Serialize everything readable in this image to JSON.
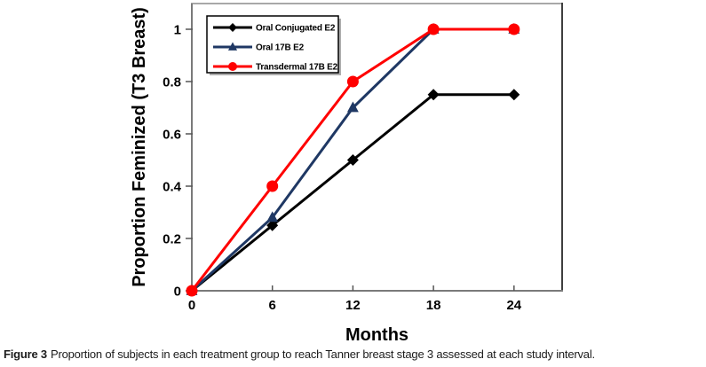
{
  "caption": {
    "label": "Figure 3",
    "text": "Proportion of subjects in each treatment group to reach Tanner breast stage 3 assessed at each study interval."
  },
  "chart_data": {
    "type": "line",
    "title": "",
    "xlabel": "Months",
    "ylabel": "Proportion Feminized (T3 Breast)",
    "x": [
      0,
      6,
      12,
      18,
      24
    ],
    "x_tick_labels": [
      "0",
      "6",
      "12",
      "18",
      "24"
    ],
    "y_ticks": [
      0,
      0.2,
      0.4,
      0.6,
      0.8,
      1
    ],
    "y_tick_labels": [
      "0",
      "0.2",
      "0.4",
      "0.6",
      "0.8",
      "1"
    ],
    "xlim": [
      0,
      27.6
    ],
    "ylim": [
      0,
      1.1
    ],
    "grid": false,
    "legend_position": "top-left-inside",
    "series": [
      {
        "name": "Oral Conjugated E2",
        "color": "#000000",
        "marker": "diamond",
        "values": [
          0,
          0.25,
          0.5,
          0.75,
          0.75
        ]
      },
      {
        "name": "Oral 17B E2",
        "color": "#1F3864",
        "marker": "triangle",
        "values": [
          0,
          0.28,
          0.7,
          1,
          1
        ]
      },
      {
        "name": "Transdermal 17B E2",
        "color": "#FF0000",
        "marker": "circle",
        "values": [
          0,
          0.4,
          0.8,
          1,
          1
        ]
      }
    ],
    "axis_color": "#7a7a7a",
    "tick_color": "#555555",
    "border_top_color": "#a8a8a8",
    "border_right_color": "#3f3f3f",
    "legend_shadow_color": "#adadad"
  }
}
